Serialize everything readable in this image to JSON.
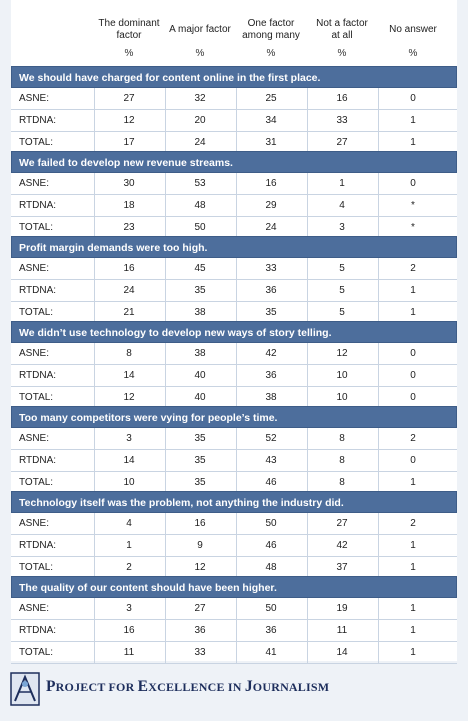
{
  "columns": [
    {
      "label": "The dominant\nfactor",
      "unit": "%"
    },
    {
      "label": "A major factor",
      "unit": "%"
    },
    {
      "label": "One factor\namong many",
      "unit": "%"
    },
    {
      "label": "Not a factor\nat all",
      "unit": "%"
    },
    {
      "label": "No answer",
      "unit": "%"
    }
  ],
  "sections": [
    {
      "title": "We should have charged for content online in the first place.",
      "rows": [
        {
          "label": "ASNE:",
          "values": [
            "27",
            "32",
            "25",
            "16",
            "0"
          ]
        },
        {
          "label": "RTDNA:",
          "values": [
            "12",
            "20",
            "34",
            "33",
            "1"
          ]
        },
        {
          "label": "TOTAL:",
          "values": [
            "17",
            "24",
            "31",
            "27",
            "1"
          ]
        }
      ]
    },
    {
      "title": "We failed to develop new revenue streams.",
      "rows": [
        {
          "label": "ASNE:",
          "values": [
            "30",
            "53",
            "16",
            "1",
            "0"
          ]
        },
        {
          "label": "RTDNA:",
          "values": [
            "18",
            "48",
            "29",
            "4",
            "*"
          ]
        },
        {
          "label": "TOTAL:",
          "values": [
            "23",
            "50",
            "24",
            "3",
            "*"
          ]
        }
      ]
    },
    {
      "title": "Profit margin demands were too high.",
      "rows": [
        {
          "label": "ASNE:",
          "values": [
            "16",
            "45",
            "33",
            "5",
            "2"
          ]
        },
        {
          "label": "RTDNA:",
          "values": [
            "24",
            "35",
            "36",
            "5",
            "1"
          ]
        },
        {
          "label": "TOTAL:",
          "values": [
            "21",
            "38",
            "35",
            "5",
            "1"
          ]
        }
      ]
    },
    {
      "title": "We didn’t use technology to develop new ways of story telling.",
      "rows": [
        {
          "label": "ASNE:",
          "values": [
            "8",
            "38",
            "42",
            "12",
            "0"
          ]
        },
        {
          "label": "RTDNA:",
          "values": [
            "14",
            "40",
            "36",
            "10",
            "0"
          ]
        },
        {
          "label": "TOTAL:",
          "values": [
            "12",
            "40",
            "38",
            "10",
            "0"
          ]
        }
      ]
    },
    {
      "title": "Too many competitors were vying for people’s time.",
      "rows": [
        {
          "label": "ASNE:",
          "values": [
            "3",
            "35",
            "52",
            "8",
            "2"
          ]
        },
        {
          "label": "RTDNA:",
          "values": [
            "14",
            "35",
            "43",
            "8",
            "0"
          ]
        },
        {
          "label": "TOTAL:",
          "values": [
            "10",
            "35",
            "46",
            "8",
            "1"
          ]
        }
      ]
    },
    {
      "title": "Technology itself was the problem, not anything the industry did.",
      "rows": [
        {
          "label": "ASNE:",
          "values": [
            "4",
            "16",
            "50",
            "27",
            "2"
          ]
        },
        {
          "label": "RTDNA:",
          "values": [
            "1",
            "9",
            "46",
            "42",
            "1"
          ]
        },
        {
          "label": "TOTAL:",
          "values": [
            "2",
            "12",
            "48",
            "37",
            "1"
          ]
        }
      ]
    },
    {
      "title": "The quality of our content should have been higher.",
      "rows": [
        {
          "label": "ASNE:",
          "values": [
            "3",
            "27",
            "50",
            "19",
            "1"
          ]
        },
        {
          "label": "RTDNA:",
          "values": [
            "16",
            "36",
            "36",
            "11",
            "1"
          ]
        },
        {
          "label": "TOTAL:",
          "values": [
            "11",
            "33",
            "41",
            "14",
            "1"
          ]
        }
      ]
    }
  ],
  "footer": {
    "logo_first": "P",
    "logo_word1": "ROJECT FOR ",
    "logo_e": "E",
    "logo_word2": "XCELLENCE IN ",
    "logo_j": "J",
    "logo_word3": "OURNALISM",
    "logo_icon": "pej-logo-icon"
  }
}
